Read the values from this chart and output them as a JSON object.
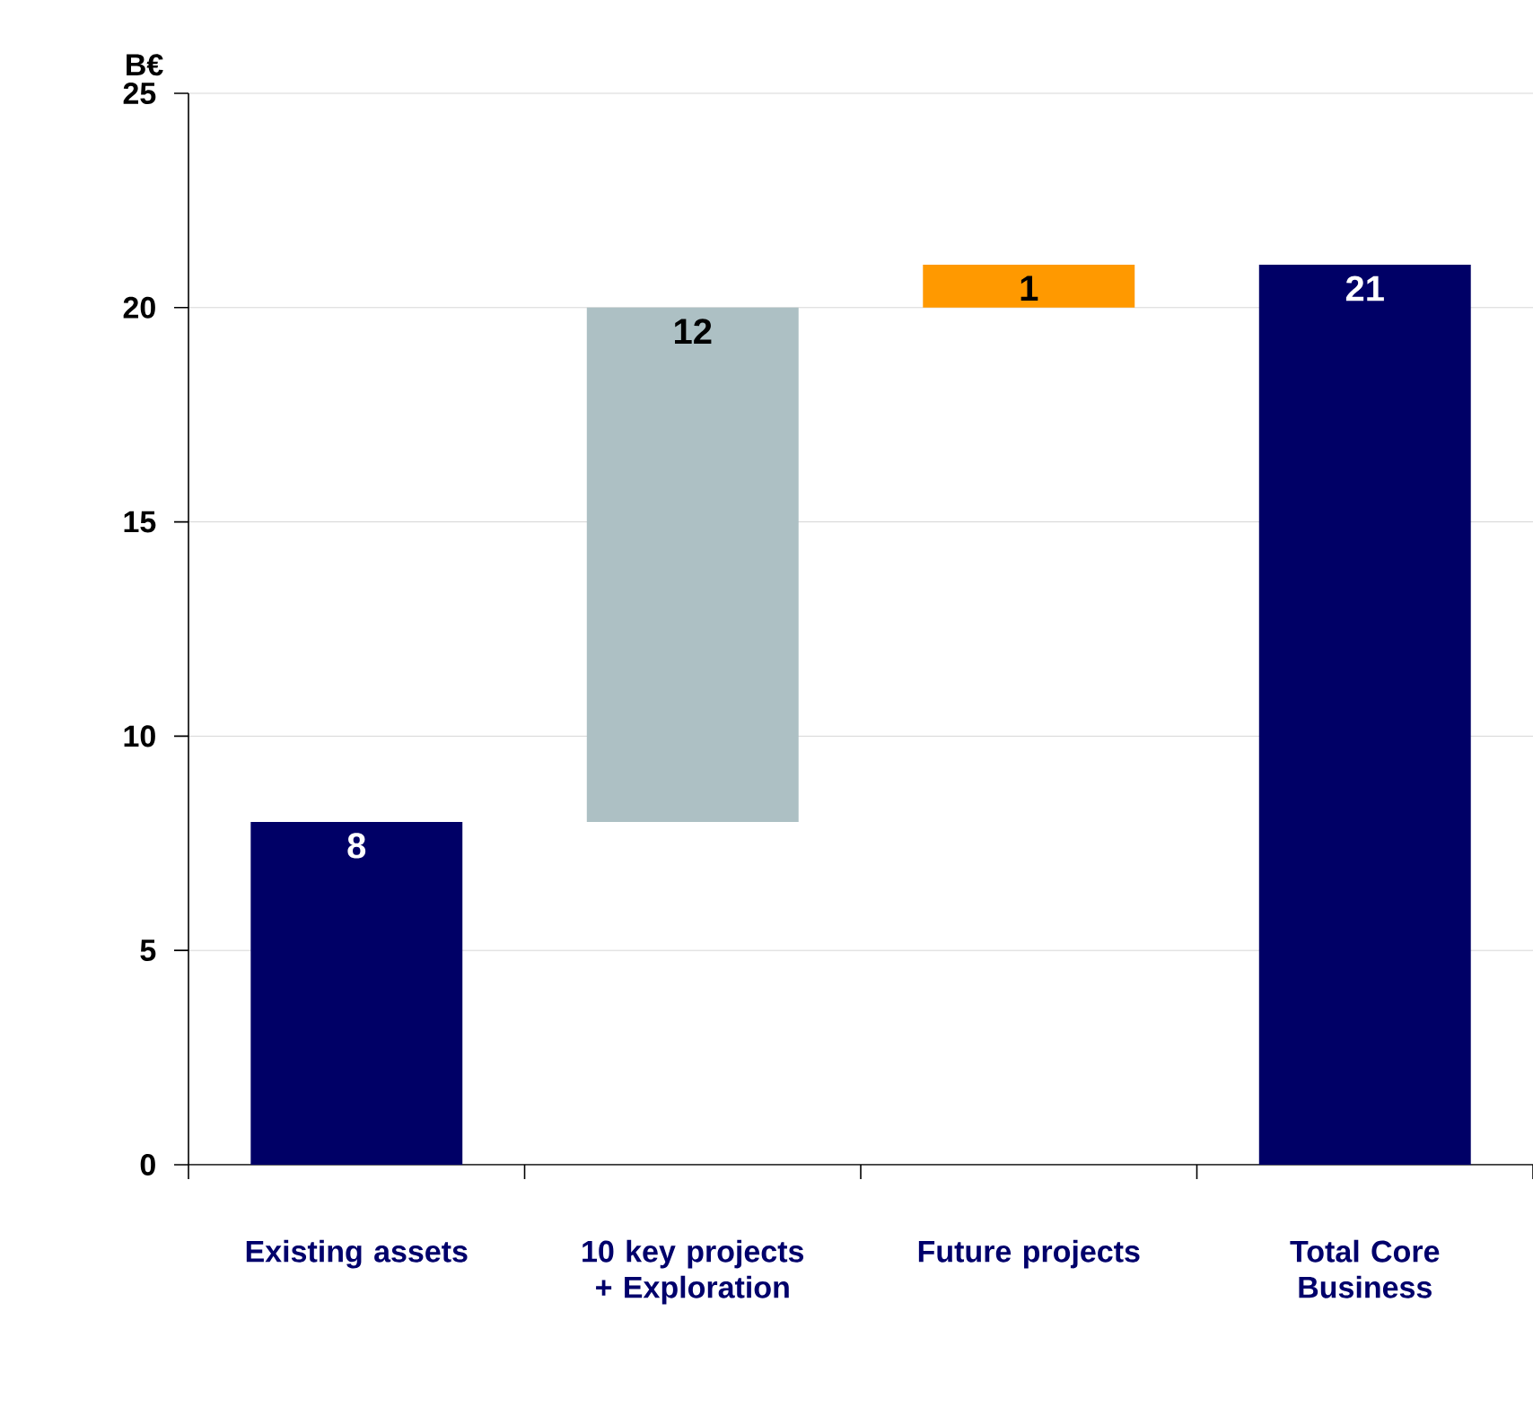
{
  "chart_data": {
    "type": "bar",
    "ylabel": "B€",
    "categories": [
      "Existing assets",
      "10 key projects + Exploration",
      "Future projects",
      "Total Core Business"
    ],
    "values": [
      8,
      12,
      1,
      21
    ],
    "base": [
      0,
      8,
      20,
      0
    ],
    "colors": [
      "#000066",
      "#adc0c4",
      "#ff9900",
      "#000066"
    ],
    "ylim": [
      0,
      25
    ],
    "yticks": [
      0,
      5,
      10,
      15,
      20,
      25
    ],
    "grid": "y",
    "data_labels": true
  }
}
